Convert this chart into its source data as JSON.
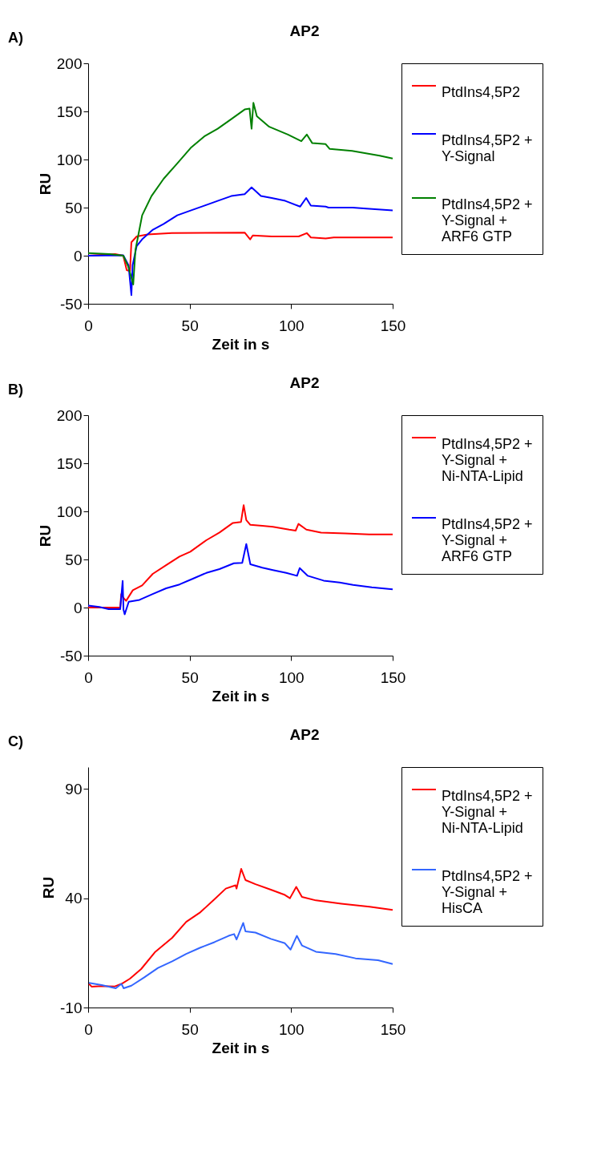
{
  "chart_data": [
    {
      "type": "line",
      "title": "AP2",
      "xlabel": "Zeit in s",
      "ylabel": "RU",
      "annotations": [
        "A)"
      ],
      "xlim": [
        0,
        150
      ],
      "xticks": [
        0,
        50,
        100,
        150
      ],
      "ylim": [
        -50,
        200
      ],
      "yticks": [
        -50,
        0,
        50,
        100,
        150,
        200
      ],
      "grid": false,
      "legend": "right",
      "marker": "none",
      "line_style": "solid",
      "series": [
        {
          "name": "PtdIns4,5P2",
          "color": "#ff0000",
          "x": [
            0,
            13.3,
            17.3,
            19,
            20.6,
            21.3,
            23.9,
            29.3,
            41.2,
            77.1,
            79.8,
            81.1,
            90.4,
            103.7,
            107.7,
            109.7,
            117,
            121,
            150
          ],
          "values": [
            0,
            1.6,
            0,
            -15,
            -16,
            14,
            20,
            22,
            23.5,
            24,
            17,
            21,
            20,
            20,
            23.5,
            19,
            18,
            19,
            19
          ]
        },
        {
          "name": "PtdIns4,5P2 +\nY-Signal",
          "color": "#0000ff",
          "x": [
            0,
            17.3,
            19.9,
            21.3,
            21.9,
            23.9,
            26.6,
            31.9,
            37.2,
            43.9,
            50.5,
            57.2,
            63.8,
            70.5,
            77.1,
            80.5,
            85.1,
            90.4,
            97.1,
            104.4,
            107.4,
            109.7,
            117,
            118.4,
            130.3,
            137,
            150
          ],
          "values": [
            0,
            0.5,
            -10,
            -41,
            -10,
            10,
            17,
            27,
            33,
            42,
            47,
            52,
            57,
            62,
            64,
            71,
            62,
            60,
            57,
            51,
            60,
            52,
            51,
            50,
            50,
            49,
            47
          ]
        },
        {
          "name": "PtdIns4,5P2 +\nY-Signal +\nARF6 GTP",
          "color": "#008000",
          "x": [
            0,
            10.6,
            17.3,
            19.9,
            22.2,
            23.3,
            26.6,
            31.2,
            37.2,
            43.9,
            50.5,
            57.2,
            63.8,
            70.5,
            77.1,
            79.5,
            80.5,
            81.4,
            83.1,
            89.2,
            98.4,
            105,
            107.7,
            110.4,
            117,
            119,
            130,
            143.6,
            150
          ],
          "values": [
            2.8,
            1.6,
            0,
            -12,
            -30,
            6,
            42,
            62,
            80,
            96,
            112,
            124,
            132,
            142,
            152,
            153,
            132,
            159,
            145,
            134,
            126,
            119,
            126,
            117,
            116,
            111,
            109,
            104,
            101
          ]
        }
      ]
    },
    {
      "type": "line",
      "title": "AP2",
      "xlabel": "Zeit in s",
      "ylabel": "RU",
      "annotations": [
        "B)"
      ],
      "xlim": [
        0,
        150
      ],
      "xticks": [
        0,
        50,
        100,
        150
      ],
      "ylim": [
        -50,
        200
      ],
      "yticks": [
        -50,
        0,
        50,
        100,
        150,
        200
      ],
      "grid": false,
      "legend": "right",
      "marker": "none",
      "line_style": "solid",
      "series": [
        {
          "name": "PtdIns4,5P2 +\nY-Signal +\nNi-NTA-Lipid",
          "color": "#ff0000",
          "x": [
            0,
            15.8,
            16.3,
            17.4,
            18.7,
            22,
            26.6,
            31.8,
            38.4,
            45,
            50.3,
            58.2,
            64.7,
            71.3,
            75.3,
            76.6,
            77.9,
            79.9,
            85.8,
            91,
            99,
            102.2,
            103.6,
            107.5,
            114.7,
            126.6,
            138.4,
            150
          ],
          "values": [
            0,
            0,
            14,
            10,
            7,
            18,
            23,
            35,
            44,
            53,
            58,
            70,
            78,
            88,
            89,
            106.5,
            91,
            86,
            85,
            84,
            81,
            80,
            87,
            81,
            78,
            77,
            76,
            76
          ]
        },
        {
          "name": "PtdIns4,5P2 +\nY-Signal +\nARF6 GTP",
          "color": "#0000ff",
          "x": [
            0,
            5.5,
            10.1,
            15.8,
            17,
            17.4,
            18,
            20,
            25.3,
            31.8,
            38.4,
            45,
            51.6,
            58.2,
            64.7,
            71.8,
            75.9,
            77.9,
            79.9,
            85.8,
            91,
            97.6,
            102.9,
            104.2,
            108.2,
            116,
            123.9,
            130.5,
            139.7,
            150
          ],
          "values": [
            2,
            0.7,
            -1.6,
            -1.6,
            27.7,
            -2,
            -7,
            6,
            8,
            14,
            20,
            24,
            30,
            36,
            40,
            46,
            46.5,
            66,
            45,
            41.5,
            39,
            36,
            33,
            41,
            33,
            28,
            26,
            23.5,
            21,
            19
          ]
        }
      ]
    },
    {
      "type": "line",
      "title": "AP2",
      "xlabel": "Zeit in s",
      "ylabel": "RU",
      "annotations": [
        "C)"
      ],
      "xlim": [
        0,
        150
      ],
      "xticks": [
        0,
        50,
        100,
        150
      ],
      "ylim": [
        -10,
        100
      ],
      "yticks": [
        -10,
        40,
        90
      ],
      "grid": false,
      "legend": "right",
      "marker": "none",
      "line_style": "solid",
      "series": [
        {
          "name": "PtdIns4,5P2 +\nY-Signal +\nNi-NTA-Lipid",
          "color": "#ff0000",
          "x": [
            0.4,
            1.8,
            6.7,
            12.9,
            16.4,
            20.6,
            26.1,
            33.1,
            41.4,
            48.3,
            55.3,
            62.2,
            67.8,
            72.6,
            73.1,
            75.4,
            77.5,
            82.4,
            90,
            96.9,
            99.4,
            102.5,
            105.3,
            112.2,
            124.7,
            138.6,
            150
          ],
          "values": [
            0.8,
            -0.5,
            -0.2,
            -0.4,
            0.8,
            3.2,
            7.6,
            15.5,
            21.9,
            29.2,
            33.6,
            39.5,
            44.4,
            45.9,
            44.4,
            53.4,
            48.3,
            46.4,
            43.9,
            41.5,
            40,
            45.2,
            40.6,
            39,
            37.5,
            36.1,
            34.6
          ]
        },
        {
          "name": "PtdIns4,5P2 +\nY-Signal +\nHisCA",
          "color": "#3366ff",
          "x": [
            0.4,
            6.7,
            13.6,
            16.4,
            17.5,
            21.3,
            27.5,
            34.4,
            41.4,
            48.3,
            55.3,
            62.2,
            69.2,
            71.9,
            73.1,
            76.4,
            77.5,
            82.4,
            90,
            96.9,
            99.7,
            102.8,
            105.3,
            112.2,
            121.9,
            131.7,
            142.8,
            150
          ],
          "values": [
            1.3,
            0.3,
            -1.2,
            0.8,
            -1.2,
            0,
            3.7,
            8.1,
            11.1,
            14.5,
            17.4,
            19.9,
            22.8,
            23.6,
            21.1,
            28.7,
            24.8,
            24.3,
            21.4,
            19.4,
            16.5,
            22.8,
            18.4,
            15.5,
            14.5,
            12.5,
            11.6,
            9.9
          ]
        }
      ]
    }
  ]
}
